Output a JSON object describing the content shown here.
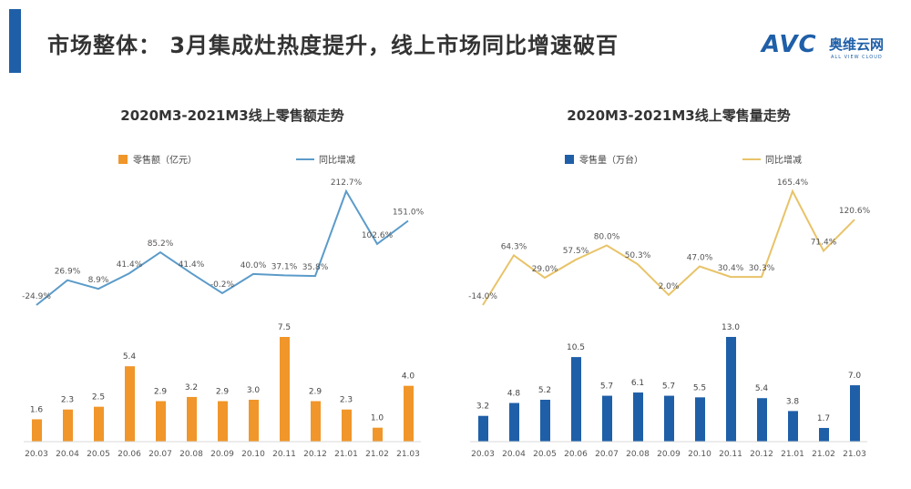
{
  "header": {
    "title": "市场整体： 3月集成灶热度提升，线上市场同比增速破百",
    "logo_text": "AVC",
    "logo_cn": "奥维云网",
    "logo_sub": "ALL VIEW CLOUD"
  },
  "colors": {
    "orange": "#f0962a",
    "blue_bar": "#1f5fa8",
    "blue_line": "#5b9bc9",
    "yellow_line": "#e8c368",
    "accent": "#1f5fa8"
  },
  "chart_data": [
    {
      "type": "bar+line",
      "title": "2020M3-2021M3线上零售额走势",
      "categories": [
        "20.03",
        "20.04",
        "20.05",
        "20.06",
        "20.07",
        "20.08",
        "20.09",
        "20.10",
        "20.11",
        "20.12",
        "21.01",
        "21.02",
        "21.03"
      ],
      "series": [
        {
          "name": "零售额（亿元）",
          "type": "bar",
          "color": "#f0962a",
          "values": [
            1.6,
            2.3,
            2.5,
            5.4,
            2.9,
            3.2,
            2.9,
            3.0,
            7.5,
            2.9,
            2.3,
            1.0,
            4.0
          ],
          "labels": [
            "1.6",
            "2.3",
            "2.5",
            "5.4",
            "2.9",
            "3.2",
            "2.9",
            "3.0",
            "7.5",
            "2.9",
            "2.3",
            "1.0",
            "4.0"
          ]
        },
        {
          "name": "同比增减",
          "type": "line",
          "color": "#5b9bc9",
          "values": [
            -24.9,
            26.9,
            8.9,
            41.4,
            85.2,
            41.4,
            -0.2,
            40.0,
            37.1,
            35.8,
            212.7,
            102.6,
            151.0
          ],
          "labels": [
            "-24.9%",
            "26.9%",
            "8.9%",
            "41.4%",
            "85.2%",
            "41.4%",
            "-0.2%",
            "40.0%",
            "37.1%",
            "35.8%",
            "212.7%",
            "102.6%",
            "151.0%"
          ]
        }
      ],
      "legend": "top"
    },
    {
      "type": "bar+line",
      "title": "2020M3-2021M3线上零售量走势",
      "categories": [
        "20.03",
        "20.04",
        "20.05",
        "20.06",
        "20.07",
        "20.08",
        "20.09",
        "20.10",
        "20.11",
        "20.12",
        "21.01",
        "21.02",
        "21.03"
      ],
      "series": [
        {
          "name": "零售量（万台）",
          "type": "bar",
          "color": "#1f5fa8",
          "values": [
            3.2,
            4.8,
            5.2,
            10.5,
            5.7,
            6.1,
            5.7,
            5.5,
            13.0,
            5.4,
            3.8,
            1.7,
            7.0
          ],
          "labels": [
            "3.2",
            "4.8",
            "5.2",
            "10.5",
            "5.7",
            "6.1",
            "5.7",
            "5.5",
            "13.0",
            "5.4",
            "3.8",
            "1.7",
            "7.0"
          ]
        },
        {
          "name": "同比增减",
          "type": "line",
          "color": "#e8c368",
          "values": [
            -14.0,
            64.3,
            29.0,
            57.5,
            80.0,
            50.3,
            2.0,
            47.0,
            30.4,
            30.3,
            165.4,
            71.4,
            120.6
          ],
          "labels": [
            "-14.0%",
            "64.3%",
            "29.0%",
            "57.5%",
            "80.0%",
            "50.3%",
            "2.0%",
            "47.0%",
            "30.4%",
            "30.3%",
            "165.4%",
            "71.4%",
            "120.6%"
          ]
        }
      ],
      "legend": "top"
    }
  ]
}
